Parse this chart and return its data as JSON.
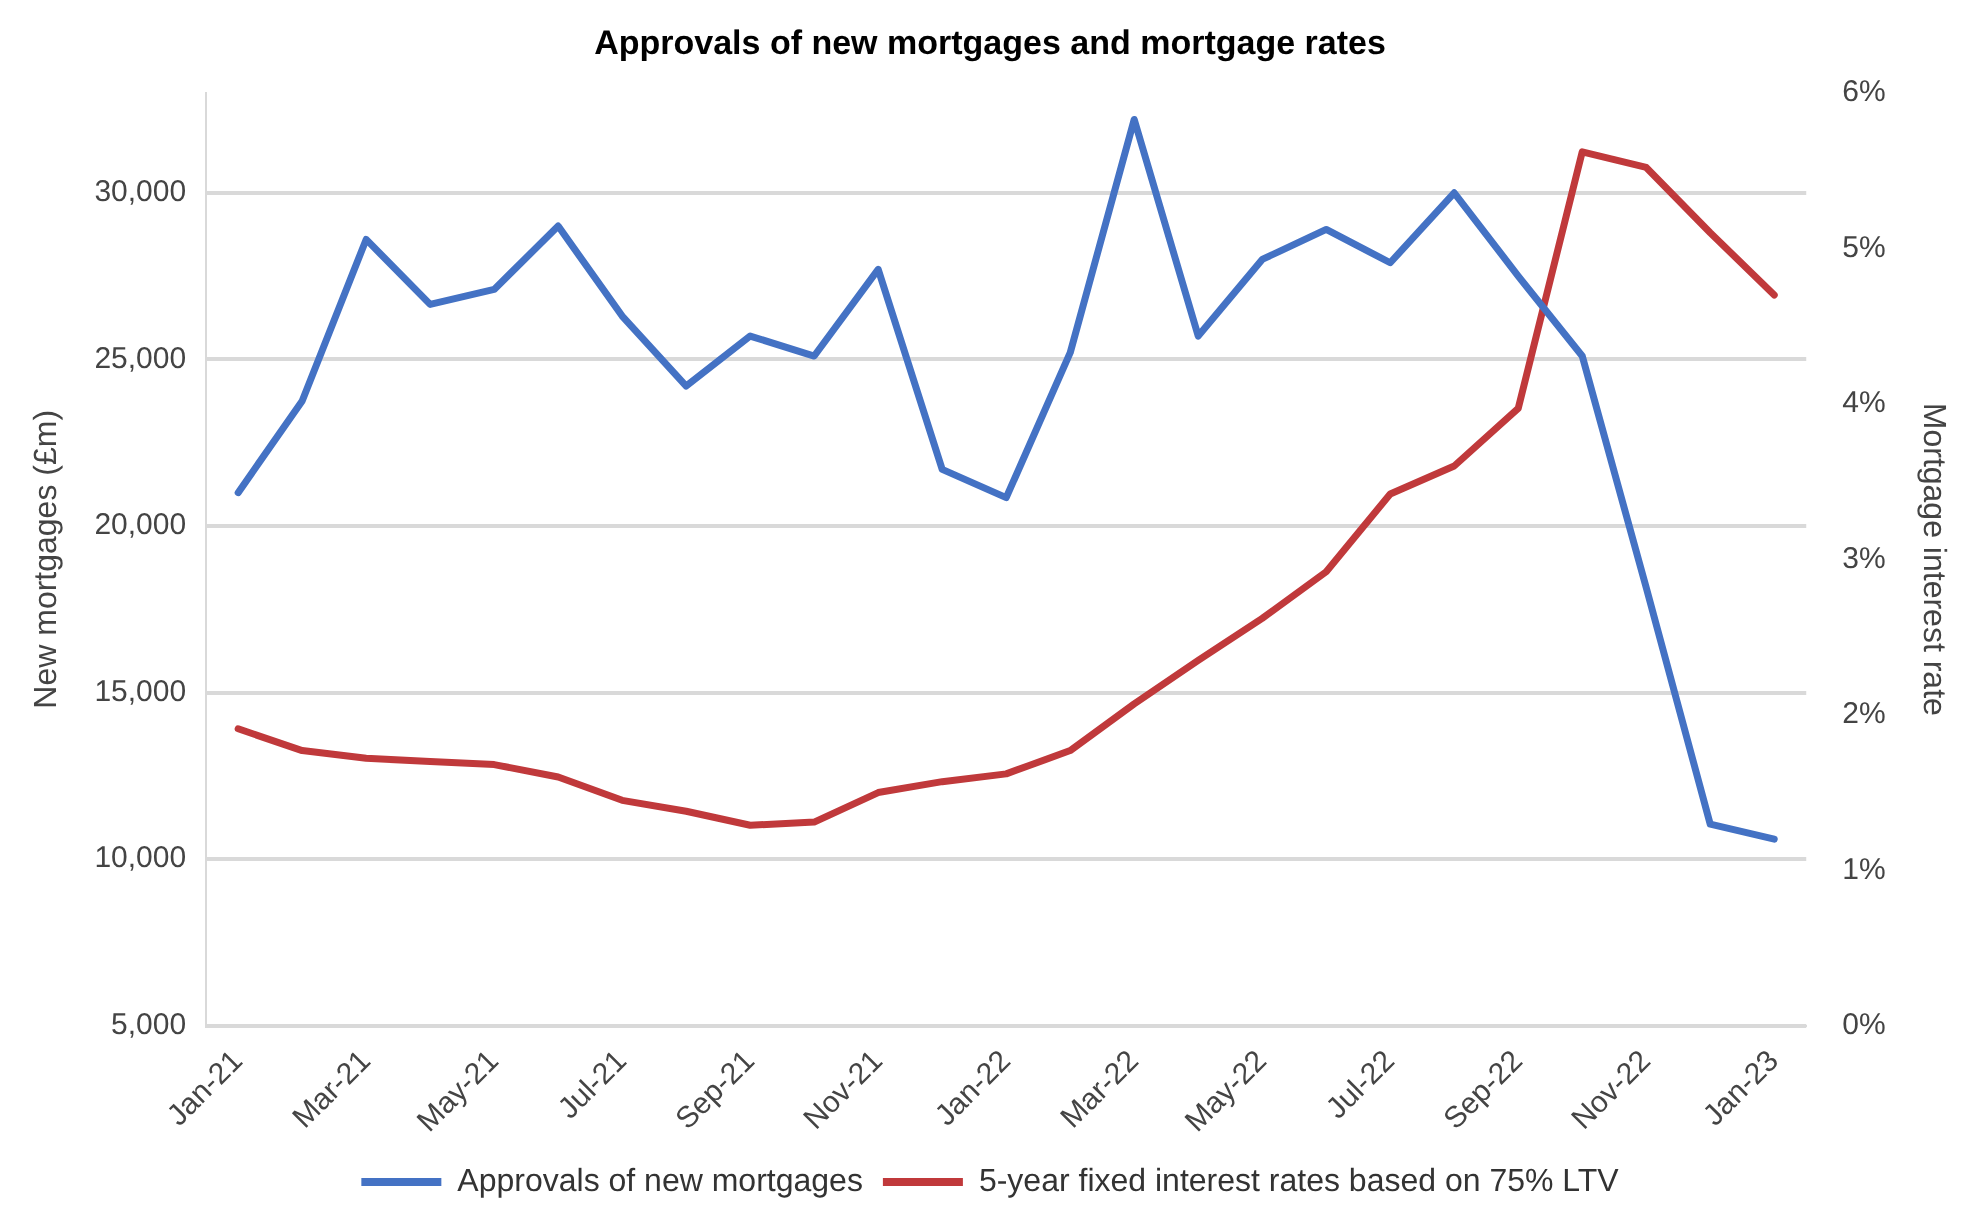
{
  "chart_data": {
    "type": "line",
    "title": "Approvals of new mortgages and mortgage rates",
    "ylabel": "New mortgages (£m)",
    "y2label": "Mortgage interest rate",
    "categories": [
      "Jan-21",
      null,
      "Mar-21",
      null,
      "May-21",
      null,
      "Jul-21",
      null,
      "Sep-21",
      null,
      "Nov-21",
      null,
      "Jan-22",
      null,
      "Mar-22",
      null,
      "May-22",
      null,
      "Jul-22",
      null,
      "Sep-22",
      null,
      "Nov-22",
      null,
      "Jan-23"
    ],
    "series": [
      {
        "name": "Approvals of new mortgages",
        "color": "#4472c4",
        "values": [
          21000,
          23750,
          28600,
          26650,
          27100,
          29000,
          26300,
          24200,
          25700,
          25100,
          27700,
          21700,
          20850,
          25200,
          32200,
          25700,
          28000,
          28900,
          27900,
          30000,
          27500,
          25100,
          18150,
          11050,
          10600
        ]
      },
      {
        "name": "5-year fixed interest rates based on 75% LTV",
        "color": "#c0393b",
        "axis": "y2",
        "values": [
          1.91,
          1.77,
          1.72,
          1.7,
          1.68,
          1.6,
          1.45,
          1.38,
          1.29,
          1.31,
          1.5,
          1.57,
          1.62,
          1.77,
          2.07,
          2.35,
          2.62,
          2.92,
          3.42,
          3.6,
          3.97,
          5.62,
          5.52,
          5.1,
          4.7
        ]
      }
    ],
    "ylim": [
      5000,
      33000
    ],
    "yticks": [
      {
        "value": 5000,
        "label": "5,000"
      },
      {
        "value": 10000,
        "label": "10,000"
      },
      {
        "value": 15000,
        "label": "15,000"
      },
      {
        "value": 20000,
        "label": "20,000"
      },
      {
        "value": 25000,
        "label": "25,000"
      },
      {
        "value": 30000,
        "label": "30,000"
      }
    ],
    "y2lim": [
      0,
      6
    ],
    "y2ticks": [
      {
        "value": 0,
        "label": "0%"
      },
      {
        "value": 1,
        "label": "1%"
      },
      {
        "value": 2,
        "label": "2%"
      },
      {
        "value": 3,
        "label": "3%"
      },
      {
        "value": 4,
        "label": "4%"
      },
      {
        "value": 5,
        "label": "5%"
      },
      {
        "value": 6,
        "label": "6%"
      }
    ],
    "grid": "y",
    "legend": "bottom",
    "marker": "none",
    "line_style": "solid"
  }
}
